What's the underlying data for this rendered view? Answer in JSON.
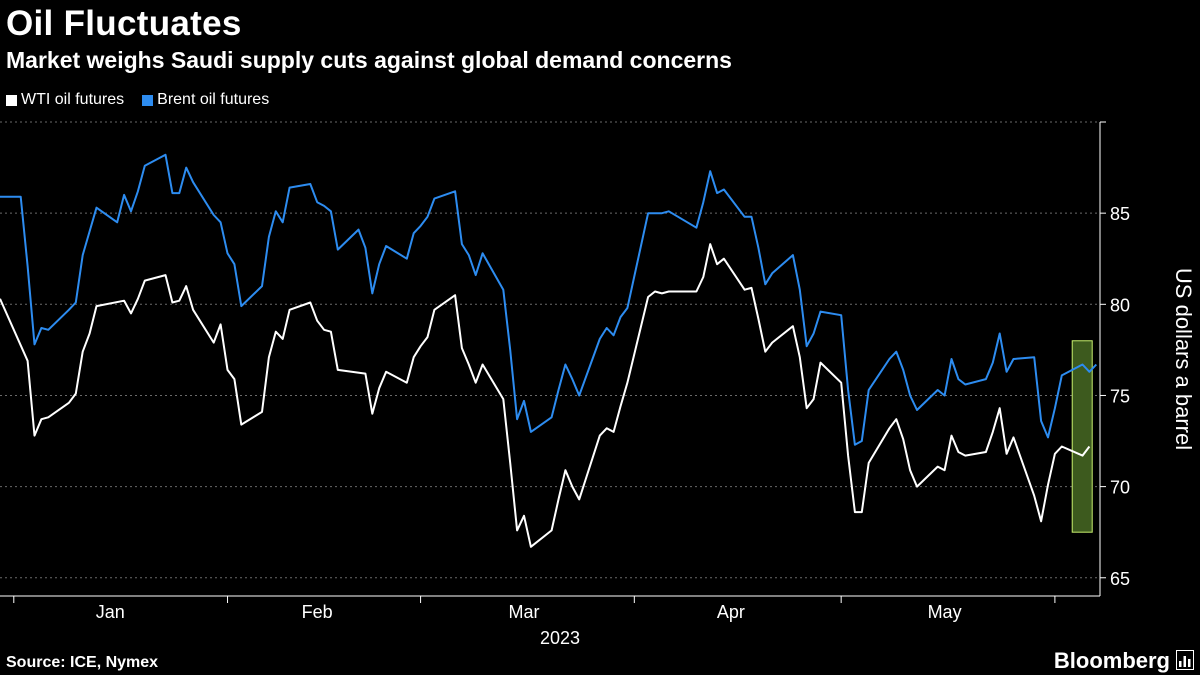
{
  "header": {
    "title": "Oil Fluctuates",
    "subtitle": "Market weighs Saudi supply cuts against global demand concerns"
  },
  "legend": {
    "items": [
      {
        "label": "WTI oil futures",
        "color": "#ffffff"
      },
      {
        "label": "Brent oil futures",
        "color": "#2d8cf0"
      }
    ]
  },
  "footer": {
    "source": "Source: ICE, Nymex",
    "brand": "Bloomberg",
    "brand_icon": "bloomberg-terminal-icon"
  },
  "chart_data": {
    "type": "line",
    "title": "Oil Fluctuates",
    "subtitle": "Market weighs Saudi supply cuts against global demand concerns",
    "ylabel": "US dollars a barrel",
    "xlabel": "2023",
    "y_axis_position": "right",
    "ylim": [
      64,
      90
    ],
    "yticks": [
      65,
      70,
      75,
      80,
      85
    ],
    "grid": "horizontal dashed",
    "x_range": [
      "2022-12-30",
      "2023-05-31"
    ],
    "month_labels": [
      {
        "label": "Jan",
        "date": "2023-01-15"
      },
      {
        "label": "Feb",
        "date": "2023-02-14"
      },
      {
        "label": "Mar",
        "date": "2023-03-16"
      },
      {
        "label": "Apr",
        "date": "2023-04-15"
      },
      {
        "label": "May",
        "date": "2023-05-16"
      }
    ],
    "year_label": "2023",
    "month_boundaries": [
      "2023-01-01",
      "2023-02-01",
      "2023-03-01",
      "2023-04-01",
      "2023-05-01",
      "2023-06-01"
    ],
    "highlight": {
      "y_range": [
        67.5,
        78
      ],
      "x_range": [
        "2023-05-29",
        "2023-05-31"
      ],
      "color": "#3d5a1e",
      "border": "#c8ef6e"
    },
    "series": [
      {
        "name": "WTI oil futures",
        "color": "#ffffff",
        "points": [
          [
            "2022-12-30",
            80.3
          ],
          [
            "2023-01-03",
            76.9
          ],
          [
            "2023-01-04",
            72.8
          ],
          [
            "2023-01-05",
            73.7
          ],
          [
            "2023-01-06",
            73.8
          ],
          [
            "2023-01-09",
            74.6
          ],
          [
            "2023-01-10",
            75.1
          ],
          [
            "2023-01-11",
            77.4
          ],
          [
            "2023-01-12",
            78.4
          ],
          [
            "2023-01-13",
            79.9
          ],
          [
            "2023-01-17",
            80.2
          ],
          [
            "2023-01-18",
            79.5
          ],
          [
            "2023-01-19",
            80.3
          ],
          [
            "2023-01-20",
            81.3
          ],
          [
            "2023-01-23",
            81.6
          ],
          [
            "2023-01-24",
            80.1
          ],
          [
            "2023-01-25",
            80.2
          ],
          [
            "2023-01-26",
            81.0
          ],
          [
            "2023-01-27",
            79.7
          ],
          [
            "2023-01-30",
            77.9
          ],
          [
            "2023-01-31",
            78.9
          ],
          [
            "2023-02-01",
            76.4
          ],
          [
            "2023-02-02",
            75.9
          ],
          [
            "2023-02-03",
            73.4
          ],
          [
            "2023-02-06",
            74.1
          ],
          [
            "2023-02-07",
            77.1
          ],
          [
            "2023-02-08",
            78.5
          ],
          [
            "2023-02-09",
            78.1
          ],
          [
            "2023-02-10",
            79.7
          ],
          [
            "2023-02-13",
            80.1
          ],
          [
            "2023-02-14",
            79.1
          ],
          [
            "2023-02-15",
            78.6
          ],
          [
            "2023-02-16",
            78.5
          ],
          [
            "2023-02-17",
            76.4
          ],
          [
            "2023-02-21",
            76.2
          ],
          [
            "2023-02-22",
            74.0
          ],
          [
            "2023-02-23",
            75.4
          ],
          [
            "2023-02-24",
            76.3
          ],
          [
            "2023-02-27",
            75.7
          ],
          [
            "2023-02-28",
            77.1
          ],
          [
            "2023-03-01",
            77.7
          ],
          [
            "2023-03-02",
            78.2
          ],
          [
            "2023-03-03",
            79.7
          ],
          [
            "2023-03-06",
            80.5
          ],
          [
            "2023-03-07",
            77.6
          ],
          [
            "2023-03-08",
            76.7
          ],
          [
            "2023-03-09",
            75.7
          ],
          [
            "2023-03-10",
            76.7
          ],
          [
            "2023-03-13",
            74.8
          ],
          [
            "2023-03-14",
            71.3
          ],
          [
            "2023-03-15",
            67.6
          ],
          [
            "2023-03-16",
            68.4
          ],
          [
            "2023-03-17",
            66.7
          ],
          [
            "2023-03-20",
            67.6
          ],
          [
            "2023-03-21",
            69.3
          ],
          [
            "2023-03-22",
            70.9
          ],
          [
            "2023-03-23",
            70.0
          ],
          [
            "2023-03-24",
            69.3
          ],
          [
            "2023-03-27",
            72.8
          ],
          [
            "2023-03-28",
            73.2
          ],
          [
            "2023-03-29",
            73.0
          ],
          [
            "2023-03-30",
            74.4
          ],
          [
            "2023-03-31",
            75.7
          ],
          [
            "2023-04-03",
            80.4
          ],
          [
            "2023-04-04",
            80.7
          ],
          [
            "2023-04-05",
            80.6
          ],
          [
            "2023-04-06",
            80.7
          ],
          [
            "2023-04-10",
            80.7
          ],
          [
            "2023-04-11",
            81.5
          ],
          [
            "2023-04-12",
            83.3
          ],
          [
            "2023-04-13",
            82.2
          ],
          [
            "2023-04-14",
            82.5
          ],
          [
            "2023-04-17",
            80.8
          ],
          [
            "2023-04-18",
            80.9
          ],
          [
            "2023-04-19",
            79.2
          ],
          [
            "2023-04-20",
            77.4
          ],
          [
            "2023-04-21",
            77.9
          ],
          [
            "2023-04-24",
            78.8
          ],
          [
            "2023-04-25",
            77.1
          ],
          [
            "2023-04-26",
            74.3
          ],
          [
            "2023-04-27",
            74.8
          ],
          [
            "2023-04-28",
            76.8
          ],
          [
            "2023-05-01",
            75.7
          ],
          [
            "2023-05-02",
            71.7
          ],
          [
            "2023-05-03",
            68.6
          ],
          [
            "2023-05-04",
            68.6
          ],
          [
            "2023-05-05",
            71.3
          ],
          [
            "2023-05-08",
            73.2
          ],
          [
            "2023-05-09",
            73.7
          ],
          [
            "2023-05-10",
            72.6
          ],
          [
            "2023-05-11",
            70.9
          ],
          [
            "2023-05-12",
            70.0
          ],
          [
            "2023-05-15",
            71.1
          ],
          [
            "2023-05-16",
            70.9
          ],
          [
            "2023-05-17",
            72.8
          ],
          [
            "2023-05-18",
            71.9
          ],
          [
            "2023-05-19",
            71.7
          ],
          [
            "2023-05-22",
            71.9
          ],
          [
            "2023-05-23",
            73.0
          ],
          [
            "2023-05-24",
            74.3
          ],
          [
            "2023-05-25",
            71.8
          ],
          [
            "2023-05-26",
            72.7
          ],
          [
            "2023-05-29",
            69.5
          ],
          [
            "2023-05-30",
            68.1
          ],
          [
            "2023-05-31",
            70.1
          ],
          [
            "2023-06-01",
            71.8
          ],
          [
            "2023-06-02",
            72.2
          ],
          [
            "2023-06-05",
            71.7
          ],
          [
            "2023-06-06",
            72.2
          ]
        ]
      },
      {
        "name": "Brent oil futures",
        "color": "#2d8cf0",
        "points": [
          [
            "2022-12-30",
            85.9
          ],
          [
            "2023-01-02",
            85.9
          ],
          [
            "2023-01-03",
            82.1
          ],
          [
            "2023-01-04",
            77.8
          ],
          [
            "2023-01-05",
            78.7
          ],
          [
            "2023-01-06",
            78.6
          ],
          [
            "2023-01-09",
            79.7
          ],
          [
            "2023-01-10",
            80.1
          ],
          [
            "2023-01-11",
            82.7
          ],
          [
            "2023-01-12",
            84.0
          ],
          [
            "2023-01-13",
            85.3
          ],
          [
            "2023-01-16",
            84.5
          ],
          [
            "2023-01-17",
            86.0
          ],
          [
            "2023-01-18",
            85.1
          ],
          [
            "2023-01-19",
            86.2
          ],
          [
            "2023-01-20",
            87.6
          ],
          [
            "2023-01-23",
            88.2
          ],
          [
            "2023-01-24",
            86.1
          ],
          [
            "2023-01-25",
            86.1
          ],
          [
            "2023-01-26",
            87.5
          ],
          [
            "2023-01-27",
            86.7
          ],
          [
            "2023-01-30",
            84.9
          ],
          [
            "2023-01-31",
            84.5
          ],
          [
            "2023-02-01",
            82.8
          ],
          [
            "2023-02-02",
            82.2
          ],
          [
            "2023-02-03",
            79.9
          ],
          [
            "2023-02-06",
            81.0
          ],
          [
            "2023-02-07",
            83.7
          ],
          [
            "2023-02-08",
            85.1
          ],
          [
            "2023-02-09",
            84.5
          ],
          [
            "2023-02-10",
            86.4
          ],
          [
            "2023-02-13",
            86.6
          ],
          [
            "2023-02-14",
            85.6
          ],
          [
            "2023-02-15",
            85.4
          ],
          [
            "2023-02-16",
            85.1
          ],
          [
            "2023-02-17",
            83.0
          ],
          [
            "2023-02-20",
            84.1
          ],
          [
            "2023-02-21",
            83.1
          ],
          [
            "2023-02-22",
            80.6
          ],
          [
            "2023-02-23",
            82.2
          ],
          [
            "2023-02-24",
            83.2
          ],
          [
            "2023-02-27",
            82.5
          ],
          [
            "2023-02-28",
            83.9
          ],
          [
            "2023-03-01",
            84.3
          ],
          [
            "2023-03-02",
            84.8
          ],
          [
            "2023-03-03",
            85.8
          ],
          [
            "2023-03-06",
            86.2
          ],
          [
            "2023-03-07",
            83.3
          ],
          [
            "2023-03-08",
            82.7
          ],
          [
            "2023-03-09",
            81.6
          ],
          [
            "2023-03-10",
            82.8
          ],
          [
            "2023-03-13",
            80.8
          ],
          [
            "2023-03-14",
            77.5
          ],
          [
            "2023-03-15",
            73.7
          ],
          [
            "2023-03-16",
            74.7
          ],
          [
            "2023-03-17",
            73.0
          ],
          [
            "2023-03-20",
            73.8
          ],
          [
            "2023-03-21",
            75.3
          ],
          [
            "2023-03-22",
            76.7
          ],
          [
            "2023-03-23",
            75.9
          ],
          [
            "2023-03-24",
            75.0
          ],
          [
            "2023-03-27",
            78.1
          ],
          [
            "2023-03-28",
            78.7
          ],
          [
            "2023-03-29",
            78.3
          ],
          [
            "2023-03-30",
            79.3
          ],
          [
            "2023-03-31",
            79.8
          ],
          [
            "2023-04-03",
            85.0
          ],
          [
            "2023-04-04",
            85.0
          ],
          [
            "2023-04-05",
            85.0
          ],
          [
            "2023-04-06",
            85.1
          ],
          [
            "2023-04-10",
            84.2
          ],
          [
            "2023-04-11",
            85.6
          ],
          [
            "2023-04-12",
            87.3
          ],
          [
            "2023-04-13",
            86.1
          ],
          [
            "2023-04-14",
            86.3
          ],
          [
            "2023-04-17",
            84.8
          ],
          [
            "2023-04-18",
            84.8
          ],
          [
            "2023-04-19",
            83.1
          ],
          [
            "2023-04-20",
            81.1
          ],
          [
            "2023-04-21",
            81.7
          ],
          [
            "2023-04-24",
            82.7
          ],
          [
            "2023-04-25",
            80.8
          ],
          [
            "2023-04-26",
            77.7
          ],
          [
            "2023-04-27",
            78.4
          ],
          [
            "2023-04-28",
            79.6
          ],
          [
            "2023-05-01",
            79.4
          ],
          [
            "2023-05-02",
            75.3
          ],
          [
            "2023-05-03",
            72.3
          ],
          [
            "2023-05-04",
            72.5
          ],
          [
            "2023-05-05",
            75.3
          ],
          [
            "2023-05-08",
            77.0
          ],
          [
            "2023-05-09",
            77.4
          ],
          [
            "2023-05-10",
            76.4
          ],
          [
            "2023-05-11",
            75.0
          ],
          [
            "2023-05-12",
            74.2
          ],
          [
            "2023-05-15",
            75.3
          ],
          [
            "2023-05-16",
            75.0
          ],
          [
            "2023-05-17",
            77.0
          ],
          [
            "2023-05-18",
            75.9
          ],
          [
            "2023-05-19",
            75.6
          ],
          [
            "2023-05-22",
            75.9
          ],
          [
            "2023-05-23",
            76.8
          ],
          [
            "2023-05-24",
            78.4
          ],
          [
            "2023-05-25",
            76.3
          ],
          [
            "2023-05-26",
            77.0
          ],
          [
            "2023-05-29",
            77.1
          ],
          [
            "2023-05-30",
            73.6
          ],
          [
            "2023-05-31",
            72.7
          ],
          [
            "2023-06-01",
            74.3
          ],
          [
            "2023-06-02",
            76.1
          ],
          [
            "2023-06-05",
            76.7
          ],
          [
            "2023-06-06",
            76.3
          ],
          [
            "2023-06-07",
            76.7
          ]
        ]
      }
    ]
  }
}
